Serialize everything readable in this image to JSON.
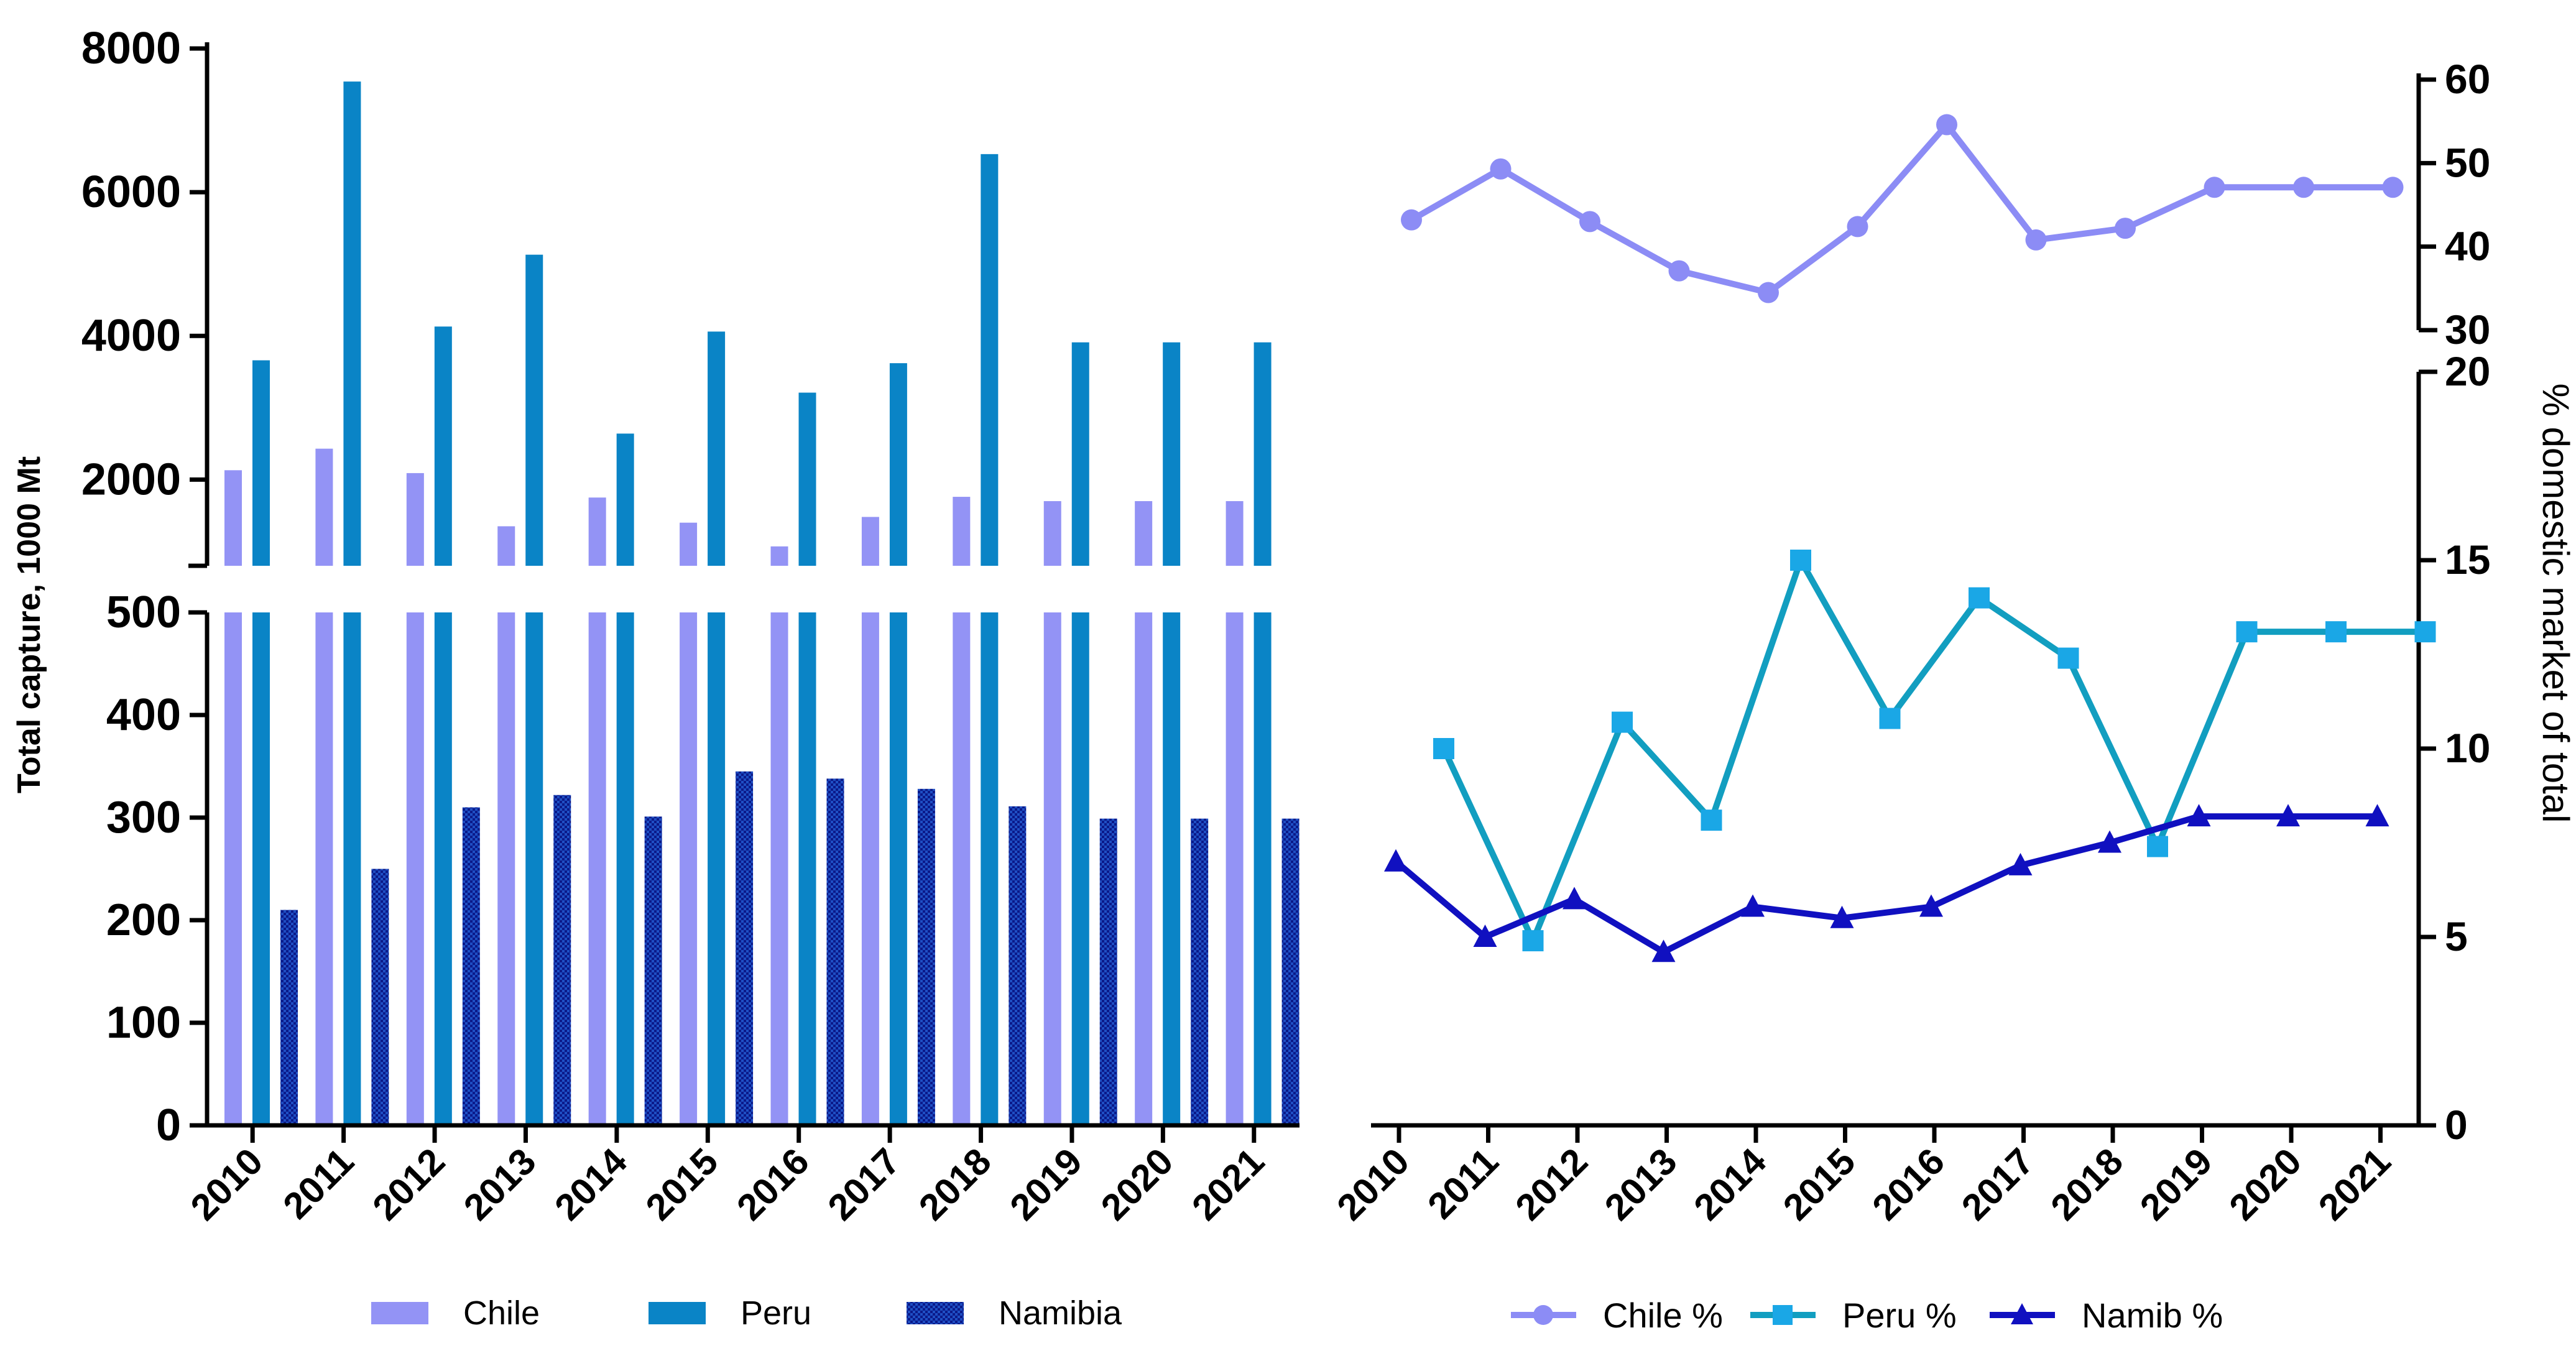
{
  "chart_data": [
    {
      "type": "bar",
      "ylabel": "Total capture, 1000 Mt",
      "broken_axis": true,
      "ylim_lower": [
        0,
        500
      ],
      "ylim_upper": [
        800,
        8000
      ],
      "yticks_lower": [
        0,
        100,
        200,
        300,
        400,
        500
      ],
      "yticks_upper": [
        2000,
        4000,
        6000,
        8000
      ],
      "categories": [
        "2010",
        "2011",
        "2012",
        "2013",
        "2014",
        "2015",
        "2016",
        "2017",
        "2018",
        "2019",
        "2020",
        "2021"
      ],
      "series": [
        {
          "name": "Chile",
          "color": "#9393f5",
          "pattern": "solid",
          "values": [
            2130,
            2430,
            2090,
            1350,
            1750,
            1400,
            1070,
            1480,
            1760,
            1700,
            1700,
            1700
          ]
        },
        {
          "name": "Peru",
          "color": "#0a84c6",
          "pattern": "solid",
          "values": [
            3660,
            7540,
            4130,
            5130,
            2640,
            4060,
            3210,
            3620,
            6530,
            3910,
            3910,
            3910
          ]
        },
        {
          "name": "Namibia",
          "color": "#0b1a8a",
          "pattern": "checkered",
          "values": [
            210,
            250,
            310,
            322,
            301,
            345,
            338,
            328,
            311,
            299,
            299,
            299
          ]
        }
      ]
    },
    {
      "type": "line",
      "ylabel": "% domestic market of total",
      "broken_axis": true,
      "ylim_lower": [
        0,
        20
      ],
      "ylim_upper": [
        30,
        60
      ],
      "yticks_lower": [
        0,
        5,
        10,
        15,
        20
      ],
      "yticks_upper": [
        30,
        40,
        50,
        60
      ],
      "categories": [
        "2010",
        "2011",
        "2012",
        "2013",
        "2014",
        "2015",
        "2016",
        "2017",
        "2018",
        "2019",
        "2020",
        "2021"
      ],
      "series": [
        {
          "name": "Chile %",
          "color": "#8c8cf5",
          "marker": "circle",
          "values": [
            43.2,
            49.3,
            43.0,
            37.1,
            34.5,
            42.4,
            54.6,
            40.8,
            42.2,
            47.1,
            47.1,
            47.1
          ]
        },
        {
          "name": "Peru %",
          "color": "#129ec0",
          "marker_color": "#1aa7e6",
          "marker": "square",
          "values": [
            10.0,
            4.9,
            10.7,
            8.1,
            15.0,
            10.8,
            14.0,
            12.4,
            7.4,
            13.1,
            13.1,
            13.1
          ]
        },
        {
          "name": "Namib %",
          "color": "#1010c0",
          "marker": "triangle",
          "values": [
            7.0,
            5.0,
            6.0,
            4.6,
            5.8,
            5.5,
            5.8,
            6.9,
            7.5,
            8.2,
            8.2,
            8.2
          ]
        }
      ]
    }
  ]
}
